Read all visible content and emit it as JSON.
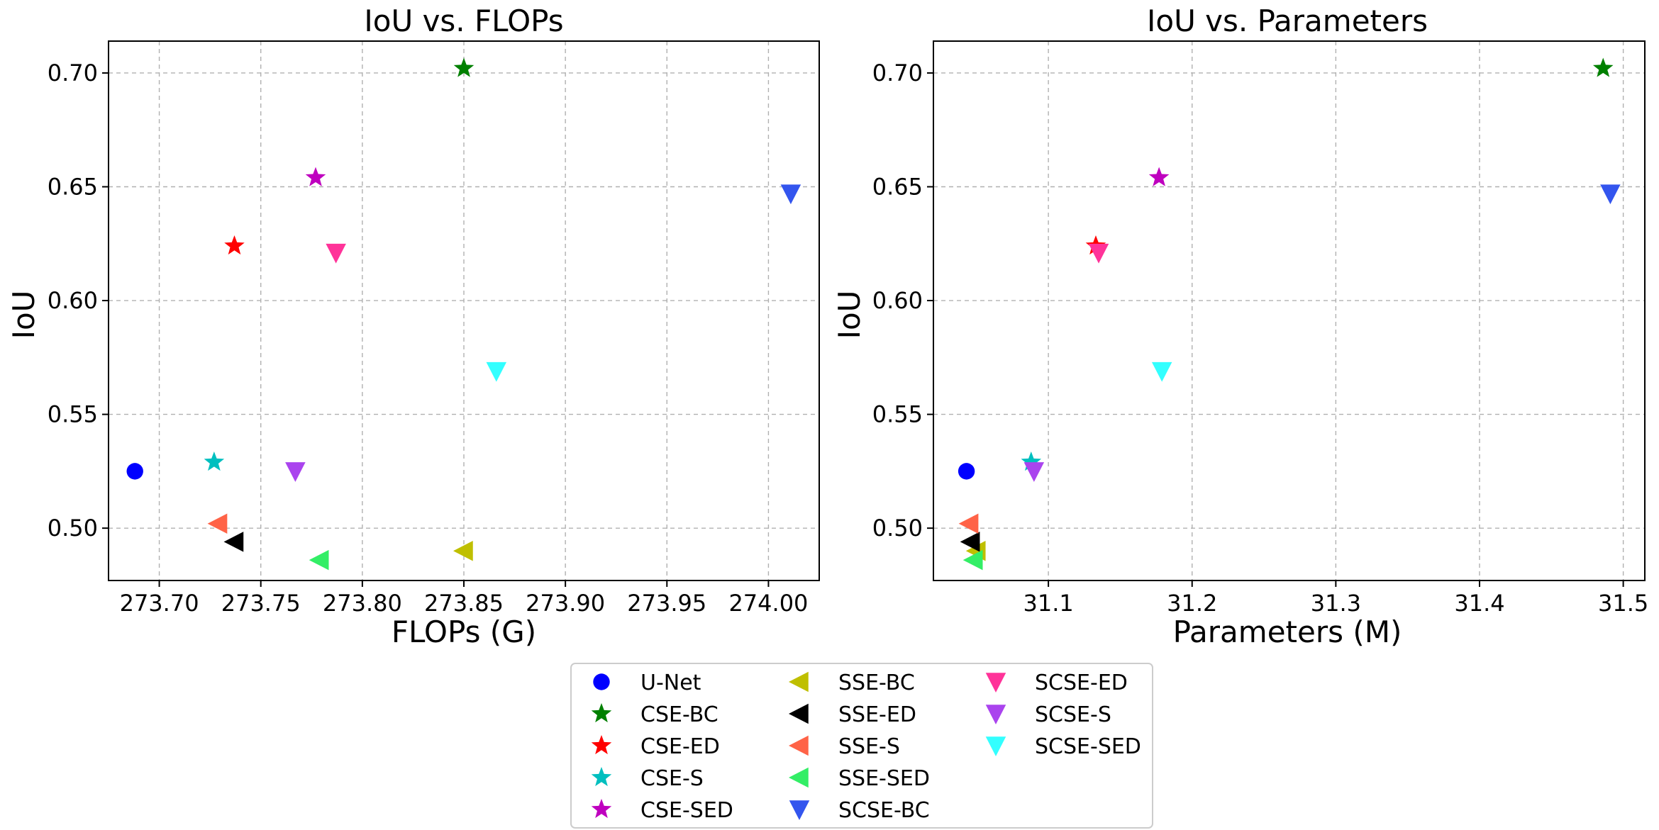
{
  "chart_data": [
    {
      "type": "scatter",
      "title": "IoU vs. FLOPs",
      "xlabel": "FLOPs (G)",
      "ylabel": "IoU",
      "xlim": [
        273.675,
        274.025
      ],
      "ylim": [
        0.477,
        0.714
      ],
      "xticks": [
        273.7,
        273.75,
        273.8,
        273.85,
        273.9,
        273.95,
        274.0
      ],
      "xtick_labels": [
        "273.70",
        "273.75",
        "273.80",
        "273.85",
        "273.90",
        "273.95",
        "274.00"
      ],
      "yticks": [
        0.5,
        0.55,
        0.6,
        0.65,
        0.7
      ],
      "ytick_labels": [
        "0.50",
        "0.55",
        "0.60",
        "0.65",
        "0.70"
      ],
      "grid": true,
      "series": [
        {
          "name": "U-Net",
          "x": 273.688,
          "y": 0.525
        },
        {
          "name": "CSE-BC",
          "x": 273.85,
          "y": 0.702
        },
        {
          "name": "CSE-ED",
          "x": 273.737,
          "y": 0.624
        },
        {
          "name": "CSE-S",
          "x": 273.727,
          "y": 0.529
        },
        {
          "name": "CSE-SED",
          "x": 273.777,
          "y": 0.654
        },
        {
          "name": "SSE-BC",
          "x": 273.85,
          "y": 0.49
        },
        {
          "name": "SSE-ED",
          "x": 273.737,
          "y": 0.494
        },
        {
          "name": "SSE-S",
          "x": 273.729,
          "y": 0.502
        },
        {
          "name": "SSE-SED",
          "x": 273.779,
          "y": 0.486
        },
        {
          "name": "SCSE-BC",
          "x": 274.011,
          "y": 0.647
        },
        {
          "name": "SCSE-ED",
          "x": 273.787,
          "y": 0.621
        },
        {
          "name": "SCSE-S",
          "x": 273.767,
          "y": 0.525
        },
        {
          "name": "SCSE-SED",
          "x": 273.866,
          "y": 0.569
        }
      ]
    },
    {
      "type": "scatter",
      "title": "IoU vs. Parameters",
      "xlabel": "Parameters (M)",
      "ylabel": "IoU",
      "xlim": [
        31.02,
        31.515
      ],
      "ylim": [
        0.477,
        0.714
      ],
      "xticks": [
        31.1,
        31.2,
        31.3,
        31.4,
        31.5
      ],
      "xtick_labels": [
        "31.1",
        "31.2",
        "31.3",
        "31.4",
        "31.5"
      ],
      "yticks": [
        0.5,
        0.55,
        0.6,
        0.65,
        0.7
      ],
      "ytick_labels": [
        "0.50",
        "0.55",
        "0.60",
        "0.65",
        "0.70"
      ],
      "grid": true,
      "series": [
        {
          "name": "U-Net",
          "x": 31.043,
          "y": 0.525
        },
        {
          "name": "CSE-BC",
          "x": 31.486,
          "y": 0.702
        },
        {
          "name": "CSE-ED",
          "x": 31.133,
          "y": 0.624
        },
        {
          "name": "CSE-S",
          "x": 31.088,
          "y": 0.529
        },
        {
          "name": "CSE-SED",
          "x": 31.177,
          "y": 0.654
        },
        {
          "name": "SSE-BC",
          "x": 31.05,
          "y": 0.49
        },
        {
          "name": "SSE-ED",
          "x": 31.046,
          "y": 0.494
        },
        {
          "name": "SSE-S",
          "x": 31.045,
          "y": 0.502
        },
        {
          "name": "SSE-SED",
          "x": 31.048,
          "y": 0.486
        },
        {
          "name": "SCSE-BC",
          "x": 31.491,
          "y": 0.647
        },
        {
          "name": "SCSE-ED",
          "x": 31.135,
          "y": 0.621
        },
        {
          "name": "SCSE-S",
          "x": 31.09,
          "y": 0.525
        },
        {
          "name": "SCSE-SED",
          "x": 31.179,
          "y": 0.569
        }
      ]
    }
  ],
  "legend": {
    "placement": "bottom-center",
    "columns": 3,
    "entries": [
      {
        "name": "U-Net",
        "marker": "circle",
        "color": "#0000ff"
      },
      {
        "name": "CSE-BC",
        "marker": "star",
        "color": "#008000"
      },
      {
        "name": "CSE-ED",
        "marker": "star",
        "color": "#ff0000"
      },
      {
        "name": "CSE-S",
        "marker": "star",
        "color": "#00bfbf"
      },
      {
        "name": "CSE-SED",
        "marker": "star",
        "color": "#bf00bf"
      },
      {
        "name": "SSE-BC",
        "marker": "triangle-left",
        "color": "#bfbf00"
      },
      {
        "name": "SSE-ED",
        "marker": "triangle-left",
        "color": "#000000"
      },
      {
        "name": "SSE-S",
        "marker": "triangle-left",
        "color": "#ff6347"
      },
      {
        "name": "SSE-SED",
        "marker": "triangle-left",
        "color": "#33ee66"
      },
      {
        "name": "SCSE-BC",
        "marker": "triangle-down",
        "color": "#3355ee"
      },
      {
        "name": "SCSE-ED",
        "marker": "triangle-down",
        "color": "#ff3399"
      },
      {
        "name": "SCSE-S",
        "marker": "triangle-down",
        "color": "#aa44ee"
      },
      {
        "name": "SCSE-SED",
        "marker": "triangle-down",
        "color": "#33ffff"
      }
    ]
  }
}
